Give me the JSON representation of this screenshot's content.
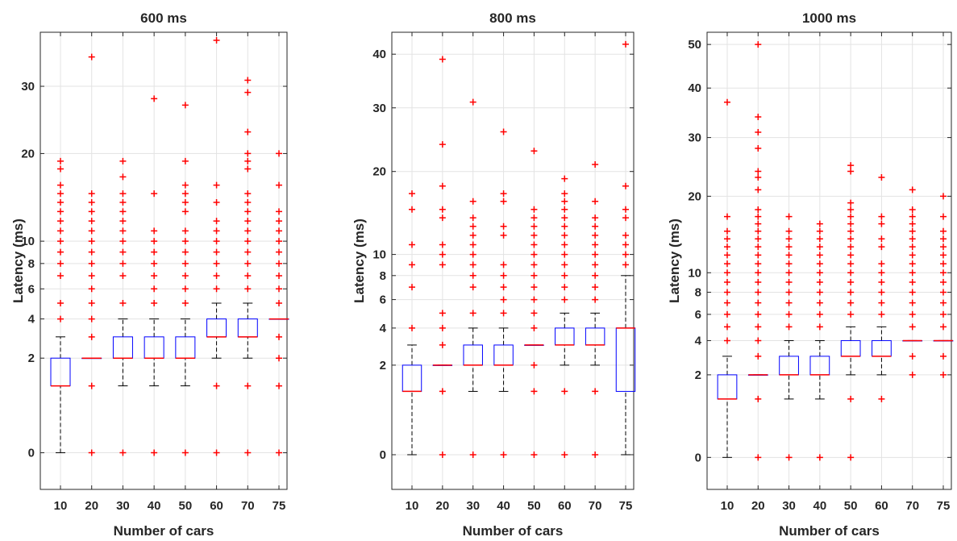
{
  "colors": {
    "box": "#0000ff",
    "median": "#ff0000",
    "outlier": "#ff0000",
    "whisker": "#000000",
    "axis": "#262626",
    "grid": "#e3e3e3"
  },
  "chart_data": [
    {
      "type": "box",
      "title": "600 ms",
      "xlabel": "Number of cars",
      "ylabel": "Latency (ms)",
      "categories": [
        "10",
        "20",
        "30",
        "40",
        "50",
        "60",
        "70",
        "75"
      ],
      "y_scale": "sqrt",
      "ylim": [
        -0.3,
        39.5
      ],
      "yticks": [
        0,
        2,
        4,
        6,
        8,
        10,
        20,
        30
      ],
      "grid": true,
      "boxes": [
        {
          "min": 0,
          "q1": 1,
          "median": 1,
          "q3": 2,
          "max": 3,
          "outliers": [
            4,
            5,
            7,
            8,
            9,
            10,
            11,
            12,
            13,
            14,
            15,
            16,
            18,
            19
          ]
        },
        {
          "min": 2,
          "q1": 2,
          "median": 2,
          "q3": 2,
          "max": 2,
          "outliers": [
            0,
            1,
            3,
            4,
            5,
            6,
            7,
            8,
            9,
            10,
            11,
            12,
            13,
            14,
            15,
            35
          ]
        },
        {
          "min": 1,
          "q1": 2,
          "median": 2,
          "q3": 3,
          "max": 4,
          "outliers": [
            0,
            5,
            7,
            8,
            9,
            10,
            11,
            12,
            13,
            14,
            15,
            17,
            19
          ]
        },
        {
          "min": 1,
          "q1": 2,
          "median": 2,
          "q3": 3,
          "max": 4,
          "outliers": [
            0,
            5,
            6,
            7,
            8,
            9,
            10,
            11,
            15,
            28
          ]
        },
        {
          "min": 1,
          "q1": 2,
          "median": 2,
          "q3": 3,
          "max": 4,
          "outliers": [
            0,
            5,
            6,
            7,
            8,
            9,
            10,
            11,
            13,
            14,
            15,
            16,
            19,
            27
          ]
        },
        {
          "min": 2,
          "q1": 3,
          "median": 3,
          "q3": 4,
          "max": 5,
          "outliers": [
            0,
            1,
            6,
            7,
            8,
            9,
            10,
            11,
            12,
            14,
            16,
            38
          ]
        },
        {
          "min": 2,
          "q1": 3,
          "median": 3,
          "q3": 4,
          "max": 5,
          "outliers": [
            0,
            1,
            6,
            7,
            8,
            9,
            10,
            11,
            12,
            13,
            14,
            15,
            18,
            19,
            20,
            23,
            29,
            31
          ]
        },
        {
          "min": 4,
          "q1": 4,
          "median": 4,
          "q3": 4,
          "max": 4,
          "outliers": [
            0,
            1,
            2,
            3,
            5,
            6,
            7,
            8,
            9,
            10,
            11,
            12,
            13,
            16,
            20
          ]
        }
      ]
    },
    {
      "type": "box",
      "title": "800 ms",
      "xlabel": "Number of cars",
      "ylabel": "Latency (ms)",
      "categories": [
        "10",
        "20",
        "30",
        "40",
        "50",
        "60",
        "70",
        "75"
      ],
      "y_scale": "sqrt",
      "ylim": [
        -0.3,
        44.5
      ],
      "yticks": [
        0,
        2,
        4,
        6,
        8,
        10,
        20,
        30,
        40
      ],
      "grid": true,
      "boxes": [
        {
          "min": 0,
          "q1": 1,
          "median": 1,
          "q3": 2,
          "max": 3,
          "outliers": [
            4,
            7,
            9,
            11,
            15,
            17
          ]
        },
        {
          "min": 2,
          "q1": 2,
          "median": 2,
          "q3": 2,
          "max": 2,
          "outliers": [
            0,
            1,
            3,
            4,
            5,
            9,
            10,
            11,
            14,
            15,
            18,
            24,
            39
          ]
        },
        {
          "min": 1,
          "q1": 2,
          "median": 2,
          "q3": 3,
          "max": 4,
          "outliers": [
            0,
            5,
            7,
            8,
            9,
            10,
            11,
            12,
            13,
            14,
            16,
            31
          ]
        },
        {
          "min": 1,
          "q1": 2,
          "median": 2,
          "q3": 3,
          "max": 4,
          "outliers": [
            0,
            5,
            6,
            7,
            8,
            9,
            12,
            13,
            16,
            17,
            26
          ]
        },
        {
          "min": 3,
          "q1": 3,
          "median": 3,
          "q3": 3,
          "max": 3,
          "outliers": [
            0,
            1,
            2,
            4,
            5,
            6,
            7,
            8,
            9,
            10,
            11,
            12,
            13,
            14,
            15,
            23
          ]
        },
        {
          "min": 2,
          "q1": 3,
          "median": 3,
          "q3": 4,
          "max": 5,
          "outliers": [
            0,
            1,
            6,
            7,
            8,
            9,
            10,
            11,
            12,
            13,
            14,
            15,
            16,
            17,
            19
          ]
        },
        {
          "min": 2,
          "q1": 3,
          "median": 3,
          "q3": 4,
          "max": 5,
          "outliers": [
            0,
            1,
            6,
            7,
            8,
            9,
            10,
            11,
            12,
            13,
            14,
            16,
            21
          ]
        },
        {
          "min": 0,
          "q1": 1,
          "median": 4,
          "q3": 4,
          "max": 8,
          "outliers": [
            9,
            10,
            11,
            12,
            14,
            15,
            18,
            42
          ]
        }
      ]
    },
    {
      "type": "box",
      "title": "1000 ms",
      "xlabel": "Number of cars",
      "ylabel": "Latency (ms)",
      "categories": [
        "10",
        "20",
        "30",
        "40",
        "50",
        "60",
        "70",
        "75"
      ],
      "y_scale": "sqrt",
      "ylim": [
        -0.3,
        53
      ],
      "yticks": [
        0,
        2,
        4,
        6,
        8,
        10,
        20,
        30,
        40,
        50
      ],
      "grid": true,
      "boxes": [
        {
          "min": 0,
          "q1": 1,
          "median": 1,
          "q3": 2,
          "max": 3,
          "outliers": [
            4,
            5,
            6,
            7,
            8,
            9,
            10,
            11,
            12,
            13,
            14,
            15,
            17,
            37
          ]
        },
        {
          "min": 2,
          "q1": 2,
          "median": 2,
          "q3": 2,
          "max": 2,
          "outliers": [
            0,
            1,
            3,
            4,
            5,
            6,
            7,
            8,
            9,
            10,
            11,
            12,
            13,
            14,
            15,
            16,
            17,
            18,
            21,
            23,
            24,
            28,
            31,
            34,
            50
          ]
        },
        {
          "min": 1,
          "q1": 2,
          "median": 2,
          "q3": 3,
          "max": 4,
          "outliers": [
            0,
            5,
            6,
            7,
            8,
            9,
            10,
            11,
            12,
            13,
            14,
            15,
            17
          ]
        },
        {
          "min": 1,
          "q1": 2,
          "median": 2,
          "q3": 3,
          "max": 4,
          "outliers": [
            0,
            5,
            6,
            7,
            8,
            9,
            10,
            11,
            12,
            13,
            14,
            15,
            16
          ]
        },
        {
          "min": 2,
          "q1": 3,
          "median": 3,
          "q3": 4,
          "max": 5,
          "outliers": [
            0,
            1,
            6,
            7,
            8,
            9,
            10,
            11,
            12,
            13,
            14,
            15,
            16,
            17,
            18,
            19,
            24,
            25
          ]
        },
        {
          "min": 2,
          "q1": 3,
          "median": 3,
          "q3": 4,
          "max": 5,
          "outliers": [
            1,
            6,
            7,
            8,
            9,
            10,
            11,
            13,
            14,
            16,
            17,
            23
          ]
        },
        {
          "min": 4,
          "q1": 4,
          "median": 4,
          "q3": 4,
          "max": 4,
          "outliers": [
            2,
            3,
            5,
            6,
            7,
            8,
            9,
            10,
            11,
            12,
            13,
            14,
            15,
            16,
            17,
            18,
            21
          ]
        },
        {
          "min": 4,
          "q1": 4,
          "median": 4,
          "q3": 4,
          "max": 4,
          "outliers": [
            2,
            3,
            5,
            6,
            7,
            8,
            9,
            10,
            11,
            12,
            13,
            14,
            15,
            17,
            20
          ]
        }
      ]
    }
  ]
}
